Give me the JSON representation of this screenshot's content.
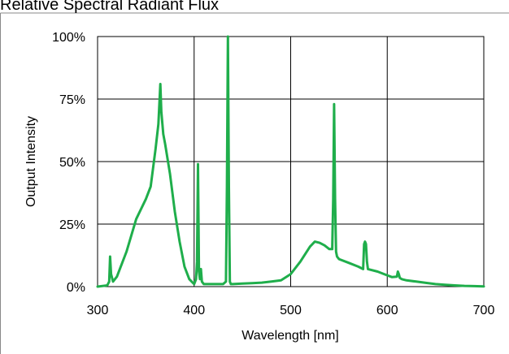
{
  "chart_data": {
    "type": "line",
    "title": "Relative Spectral Radiant Flux",
    "xlabel": "Wavelength [nm]",
    "ylabel": "Output Intensity",
    "xlim": [
      300,
      700
    ],
    "ylim": [
      0,
      100
    ],
    "x_ticks": [
      300,
      400,
      500,
      600,
      700
    ],
    "x_tick_labels": [
      "300",
      "400",
      "500",
      "600",
      "700"
    ],
    "y_ticks": [
      0,
      25,
      50,
      75,
      100
    ],
    "y_tick_labels": [
      "0%",
      "25%",
      "50%",
      "75%",
      "100%"
    ],
    "grid": true,
    "legend": "none",
    "line_color": "#1fae4b",
    "series": [
      {
        "x": [
          300,
          310,
          312,
          313,
          314,
          316,
          320,
          330,
          340,
          350,
          355,
          360,
          363,
          365,
          366,
          368,
          370,
          375,
          380,
          385,
          390,
          395,
          400,
          402,
          403,
          404,
          405,
          406,
          407,
          408,
          410,
          420,
          430,
          433,
          434,
          435,
          436,
          437,
          438,
          440,
          450,
          460,
          470,
          480,
          490,
          500,
          510,
          520,
          525,
          530,
          535,
          540,
          543,
          544,
          545,
          546,
          547,
          548,
          550,
          560,
          570,
          575,
          576,
          577,
          578,
          579,
          580,
          590,
          600,
          605,
          610,
          611,
          612,
          613,
          615,
          620,
          630,
          640,
          650,
          660,
          670,
          680,
          690,
          700
        ],
        "y": [
          0,
          0.5,
          2,
          12,
          5,
          2,
          4,
          14,
          27,
          35,
          40,
          55,
          65,
          81,
          70,
          61,
          57,
          45,
          30,
          18,
          8,
          3,
          1,
          3,
          10,
          49,
          6,
          3,
          7,
          2,
          1,
          1,
          1,
          2,
          40,
          100,
          40,
          2,
          1,
          1,
          1.2,
          1.4,
          1.6,
          2.0,
          2.5,
          5,
          10,
          16,
          18,
          17.5,
          16.5,
          15,
          15,
          35,
          73,
          35,
          14,
          12,
          11,
          9.5,
          8,
          7,
          17,
          18,
          17,
          10,
          7,
          6,
          4.5,
          3.8,
          4,
          6,
          5,
          3.5,
          3,
          2.5,
          2,
          1.5,
          1,
          0.7,
          0.5,
          0.3,
          0.2,
          0.1
        ]
      }
    ]
  }
}
